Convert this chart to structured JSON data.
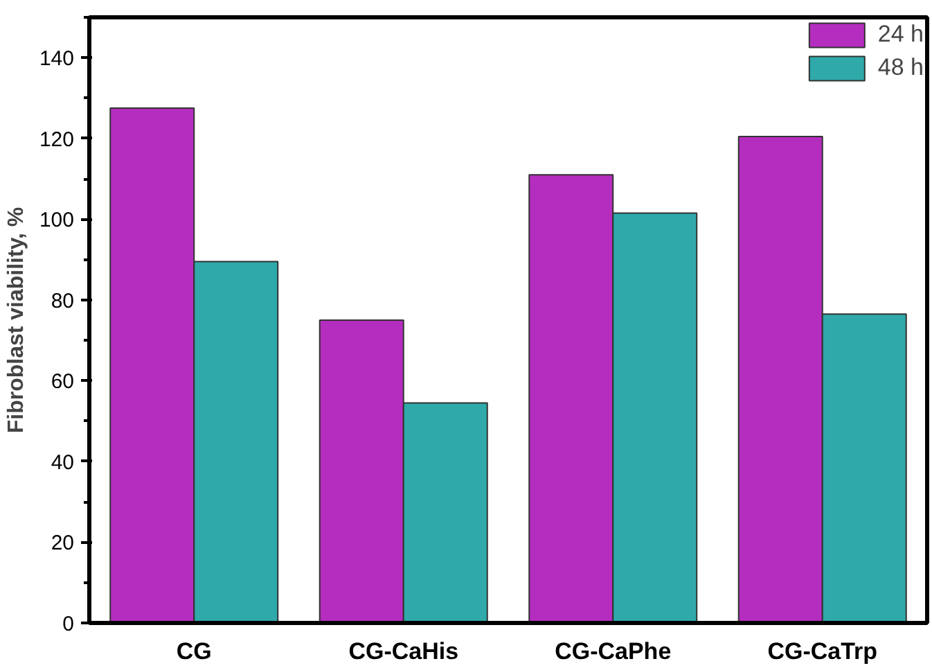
{
  "chart_data": {
    "type": "bar",
    "ylabel": "Fibroblast viability, %",
    "categories": [
      "CG",
      "CG-CaHis",
      "CG-CaPhe",
      "CG-CaTrp"
    ],
    "series": [
      {
        "name": "24 h",
        "color": "#b52dbf",
        "values": [
          127.5,
          75,
          111,
          120.5
        ]
      },
      {
        "name": "48 h",
        "color": "#2fa9a9",
        "values": [
          89.5,
          54.5,
          101.5,
          76.5
        ]
      }
    ],
    "ylim": [
      0,
      150
    ],
    "yticks": [
      0,
      20,
      40,
      60,
      80,
      100,
      120,
      140
    ],
    "grid": false,
    "legend": "top right"
  }
}
